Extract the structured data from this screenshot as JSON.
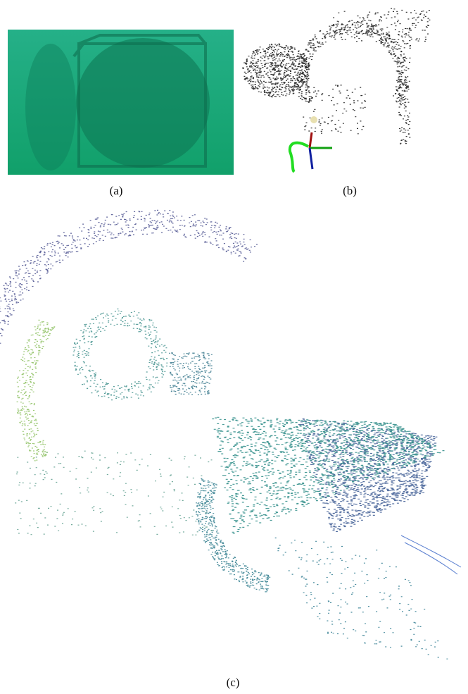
{
  "figure": {
    "subfigures": [
      {
        "label": "(a)"
      },
      {
        "label": "(b)"
      },
      {
        "label": "(c)"
      }
    ]
  }
}
